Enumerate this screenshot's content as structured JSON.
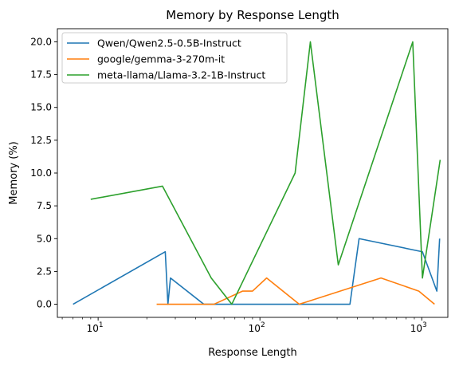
{
  "chart_data": {
    "type": "line",
    "title": "Memory by Response Length",
    "xlabel": "Response Length",
    "ylabel": "Memory (%)",
    "xscale": "log",
    "xlim": [
      5.6,
      1450
    ],
    "ylim": [
      -1.0,
      21.0
    ],
    "xticks": [
      {
        "value": 10,
        "base": "10",
        "exp": "1"
      },
      {
        "value": 100,
        "base": "10",
        "exp": "2"
      },
      {
        "value": 1000,
        "base": "10",
        "exp": "3"
      }
    ],
    "yticks": [
      0.0,
      2.5,
      5.0,
      7.5,
      10.0,
      12.5,
      15.0,
      17.5,
      20.0
    ],
    "ytick_labels": [
      "0.0",
      "2.5",
      "5.0",
      "7.5",
      "10.0",
      "12.5",
      "15.0",
      "17.5",
      "20.0"
    ],
    "grid": false,
    "legend_position": "top-left",
    "series": [
      {
        "name": "Qwen/Qwen2.5-0.5B-Instruct",
        "color": "#1f77b4",
        "x": [
          7,
          26,
          27,
          28,
          45,
          52,
          360,
          410,
          1010,
          1240,
          1290
        ],
        "y": [
          0,
          4,
          0,
          2,
          0,
          0,
          0,
          5,
          4,
          1,
          5
        ]
      },
      {
        "name": "google/gemma-3-270m-it",
        "color": "#ff7f0e",
        "x": [
          23,
          26,
          52,
          78,
          90,
          110,
          175,
          560,
          960,
          1200
        ],
        "y": [
          0,
          0,
          0,
          1,
          1,
          2,
          0,
          2,
          1,
          0
        ]
      },
      {
        "name": "meta-llama/Llama-3.2-1B-Instruct",
        "color": "#2ca02c",
        "x": [
          9,
          25,
          50,
          67,
          165,
          205,
          305,
          880,
          1010,
          1300
        ],
        "y": [
          8,
          9,
          2,
          0,
          10,
          20,
          3,
          20,
          2,
          11
        ]
      }
    ]
  }
}
